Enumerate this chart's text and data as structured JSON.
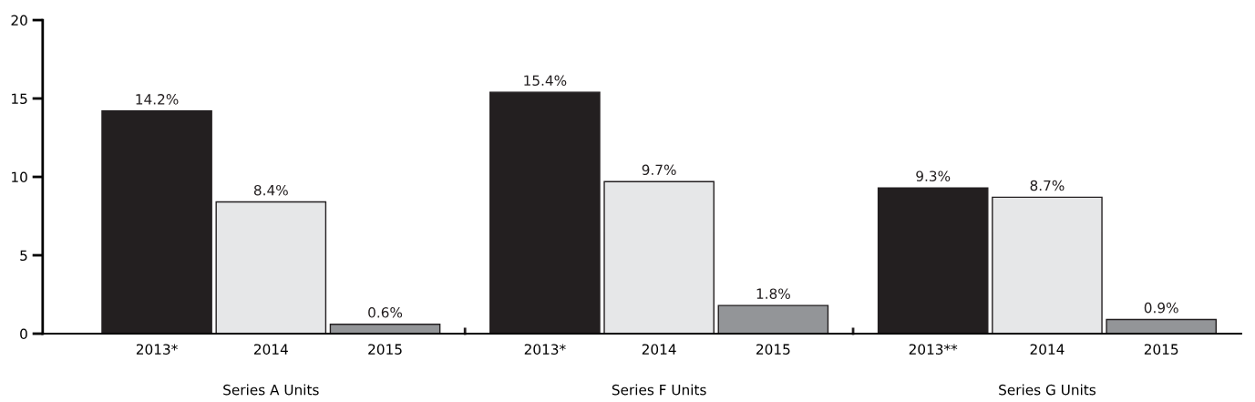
{
  "chart_data": {
    "type": "bar",
    "categories": [
      "2013*",
      "2014",
      "2015",
      "2013*",
      "2014",
      "2015",
      "2013**",
      "2014",
      "2015"
    ],
    "values": [
      14.2,
      8.4,
      0.6,
      15.4,
      9.7,
      1.8,
      9.3,
      8.7,
      0.9
    ],
    "colors": [
      "#231f20",
      "#e6e7e8",
      "#939598",
      "#231f20",
      "#e6e7e8",
      "#939598",
      "#231f20",
      "#e6e7e8",
      "#939598"
    ],
    "value_labels": [
      "14.2%",
      "8.4%",
      "0.6%",
      "15.4%",
      "9.7%",
      "1.8%",
      "9.3%",
      "8.7%",
      "0.9%"
    ],
    "annotations": [
      "Series A Units",
      "Series F Units",
      "Series G Units"
    ],
    "ylim": [
      0,
      20
    ],
    "yticks": [
      0,
      5,
      10,
      15,
      20
    ],
    "grid": false,
    "legend": false
  }
}
